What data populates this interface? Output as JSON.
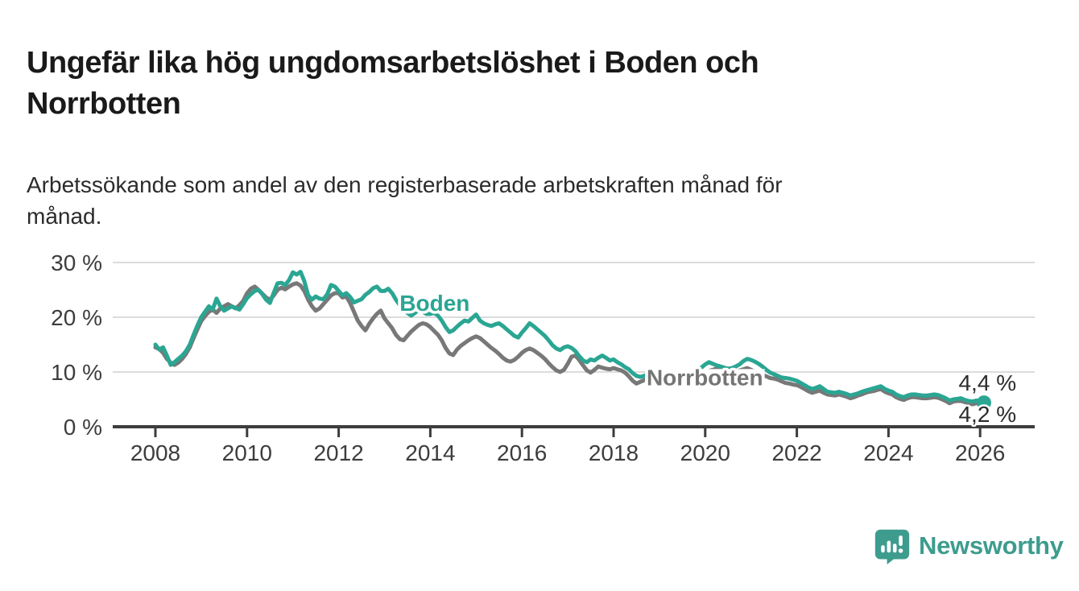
{
  "header": {
    "title": "Ungefär lika hög ungdomsarbetslöshet i Boden och\nNorrbotten",
    "subtitle": "Arbetssökande som andel av den registerbaserade arbetskraften månad för\nmånad."
  },
  "footer": {
    "brand": "Newsworthy"
  },
  "colors": {
    "boden": "#2aa693",
    "norrbotten": "#787878",
    "axis": "#3d3d3d",
    "grid": "#dcdcdc",
    "annotation": "#2b2b2b",
    "logo_teal": "#3d9c8e",
    "background": "#ffffff"
  },
  "chart_data": {
    "type": "line",
    "title": "Ungefär lika hög ungdomsarbetslöshet i Boden och Norrbotten",
    "xlabel": "",
    "ylabel": "",
    "unit": "%",
    "grid": "horizontal",
    "legend_position": "inline-labels",
    "x_base": 2008,
    "x_step_years": 0.0833333,
    "xlim": [
      2007.07,
      2027.2
    ],
    "ylim": [
      0,
      32
    ],
    "x_ticks": [
      {
        "value": 2008,
        "label": "2008"
      },
      {
        "value": 2010,
        "label": "2010"
      },
      {
        "value": 2012,
        "label": "2012"
      },
      {
        "value": 2014,
        "label": "2014"
      },
      {
        "value": 2016,
        "label": "2016"
      },
      {
        "value": 2018,
        "label": "2018"
      },
      {
        "value": 2020,
        "label": "2020"
      },
      {
        "value": 2022,
        "label": "2022"
      },
      {
        "value": 2024,
        "label": "2024"
      },
      {
        "value": 2026,
        "label": "2026"
      }
    ],
    "y_ticks": [
      {
        "value": 0,
        "label": "0 %"
      },
      {
        "value": 10,
        "label": "10 %"
      },
      {
        "value": 20,
        "label": "20 %"
      },
      {
        "value": 30,
        "label": "30 %"
      }
    ],
    "line_labels": [
      {
        "text": "Boden",
        "year": 2013.33,
        "value": 21.2,
        "anchor": "start",
        "color": "#2aa693",
        "box": true
      },
      {
        "text": "Norrbotten",
        "year": 2018.72,
        "value": 7.6,
        "anchor": "start",
        "color": "#757575",
        "box": true
      }
    ],
    "annotations": [
      {
        "text": "4,4 %",
        "year": 2026.16,
        "value": 6.6,
        "anchor": "middle"
      },
      {
        "text": "4,2 %",
        "year": 2026.16,
        "value": 0.85,
        "anchor": "middle"
      }
    ],
    "series": [
      {
        "name": "Norrbotten",
        "color": "#787878",
        "end_dot_radius": 7,
        "end_value_label": "4,2 %",
        "values": [
          14.5,
          14.2,
          13.5,
          12.4,
          11.7,
          11.3,
          11.7,
          12.4,
          13.3,
          14.5,
          16.2,
          17.8,
          19.3,
          20.2,
          21.0,
          21.4,
          20.8,
          21.6,
          22.0,
          22.4,
          22.0,
          21.6,
          22.2,
          23.0,
          24.4,
          25.2,
          25.6,
          25.0,
          24.3,
          23.6,
          23.2,
          24.0,
          25.0,
          25.4,
          25.1,
          25.6,
          26.0,
          26.2,
          25.8,
          24.8,
          23.2,
          22.0,
          21.2,
          21.6,
          22.4,
          23.2,
          24.0,
          24.4,
          24.4,
          23.6,
          23.8,
          22.6,
          21.0,
          19.4,
          18.4,
          17.6,
          18.8,
          19.8,
          20.6,
          21.2,
          19.8,
          18.9,
          18.0,
          16.8,
          16.0,
          15.8,
          16.6,
          17.4,
          18.0,
          18.6,
          18.9,
          18.7,
          18.2,
          17.5,
          16.8,
          15.8,
          14.4,
          13.4,
          13.1,
          14.1,
          14.8,
          15.3,
          15.8,
          16.2,
          16.5,
          16.2,
          15.6,
          15.0,
          14.4,
          13.9,
          13.3,
          12.6,
          12.1,
          11.9,
          12.2,
          12.8,
          13.5,
          14.0,
          14.3,
          14.0,
          13.5,
          13.0,
          12.4,
          11.6,
          10.9,
          10.3,
          10.0,
          10.4,
          11.5,
          12.8,
          13.0,
          12.2,
          11.2,
          10.3,
          9.9,
          10.4,
          11.0,
          10.8,
          10.6,
          10.5,
          10.7,
          10.5,
          10.3,
          9.9,
          9.2,
          8.4,
          7.9,
          8.2,
          8.5,
          8.8,
          9.0,
          9.2,
          9.3,
          9.1,
          8.8,
          8.5,
          8.2,
          8.0,
          8.1,
          8.4,
          8.7,
          9.0,
          9.3,
          9.6,
          9.9,
          10.2,
          10.4,
          10.6,
          10.5,
          10.3,
          10.1,
          10.0,
          10.1,
          10.3,
          10.5,
          10.7,
          10.4,
          10.1,
          9.8,
          9.5,
          9.2,
          8.9,
          8.8,
          8.6,
          8.3,
          8.0,
          7.9,
          7.7,
          7.6,
          7.3,
          6.9,
          6.5,
          6.2,
          6.4,
          6.6,
          6.2,
          5.9,
          5.8,
          5.7,
          5.9,
          5.7,
          5.5,
          5.2,
          5.4,
          5.7,
          5.9,
          6.2,
          6.4,
          6.5,
          6.7,
          6.9,
          6.4,
          6.1,
          5.9,
          5.4,
          5.1,
          4.9,
          5.2,
          5.4,
          5.4,
          5.3,
          5.2,
          5.2,
          5.3,
          5.4,
          5.3,
          5.0,
          4.7,
          4.3,
          4.6,
          4.7,
          4.7,
          4.5,
          4.3,
          4.1,
          4.3,
          4.3,
          4.2
        ]
      },
      {
        "name": "Boden",
        "color": "#2aa693",
        "end_dot_radius": 9,
        "end_value_label": "4,4 %",
        "values": [
          15.0,
          14.1,
          14.5,
          13.0,
          11.3,
          11.8,
          12.4,
          13.0,
          13.8,
          15.0,
          16.8,
          18.5,
          20.0,
          21.0,
          22.0,
          21.4,
          23.4,
          22.0,
          21.2,
          21.6,
          22.0,
          21.7,
          21.4,
          22.4,
          23.5,
          24.2,
          24.8,
          25.0,
          24.2,
          23.2,
          22.6,
          24.5,
          26.2,
          26.3,
          25.9,
          26.8,
          28.2,
          27.8,
          28.3,
          26.6,
          24.0,
          23.2,
          23.8,
          23.4,
          23.3,
          24.2,
          25.9,
          25.6,
          24.8,
          24.0,
          24.4,
          23.7,
          22.7,
          23.0,
          23.3,
          24.1,
          24.6,
          25.3,
          25.6,
          24.8,
          24.8,
          25.2,
          24.4,
          23.2,
          22.2,
          21.4,
          20.8,
          20.3,
          20.8,
          21.4,
          21.0,
          20.6,
          20.6,
          20.8,
          20.3,
          19.4,
          18.2,
          17.3,
          17.6,
          18.3,
          18.9,
          19.4,
          19.2,
          19.9,
          20.5,
          19.4,
          18.9,
          18.6,
          18.4,
          18.7,
          18.9,
          18.4,
          17.8,
          17.2,
          16.6,
          16.3,
          17.2,
          18.0,
          18.9,
          18.4,
          17.8,
          17.2,
          16.6,
          15.8,
          14.9,
          14.3,
          14.0,
          14.5,
          14.7,
          14.4,
          13.8,
          12.9,
          12.1,
          11.8,
          12.3,
          12.1,
          12.6,
          13.0,
          12.6,
          12.1,
          12.3,
          11.8,
          11.4,
          10.9,
          10.5,
          9.8,
          9.3,
          9.1,
          9.3,
          9.6,
          9.8,
          10.0,
          10.2,
          10.0,
          9.6,
          9.3,
          9.0,
          8.8,
          8.9,
          9.2,
          9.6,
          10.0,
          10.4,
          10.8,
          11.4,
          11.8,
          11.5,
          11.2,
          11.0,
          10.8,
          10.6,
          10.7,
          11.0,
          11.4,
          12.0,
          12.4,
          12.2,
          11.9,
          11.5,
          11.0,
          10.4,
          9.9,
          9.6,
          9.3,
          9.0,
          8.9,
          8.8,
          8.6,
          8.4,
          8.0,
          7.6,
          7.2,
          6.9,
          7.1,
          7.4,
          6.9,
          6.4,
          6.3,
          6.2,
          6.4,
          6.2,
          6.0,
          5.7,
          5.9,
          6.1,
          6.4,
          6.6,
          6.8,
          7.0,
          7.2,
          7.4,
          6.9,
          6.6,
          6.4,
          5.9,
          5.6,
          5.4,
          5.7,
          5.9,
          5.9,
          5.8,
          5.7,
          5.7,
          5.8,
          5.9,
          5.8,
          5.5,
          5.2,
          4.8,
          5.0,
          5.1,
          5.2,
          4.9,
          4.7,
          4.6,
          4.8,
          4.6,
          4.4
        ]
      }
    ]
  }
}
